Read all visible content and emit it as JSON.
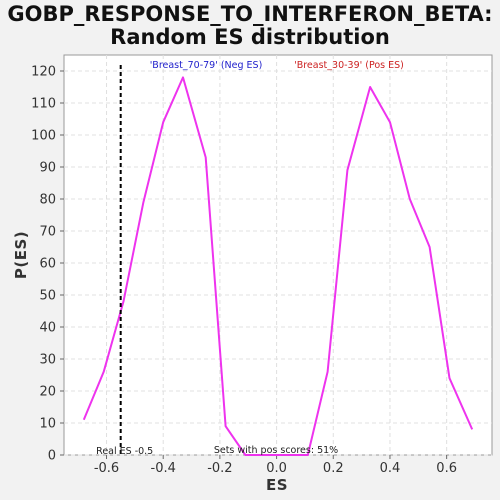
{
  "chart_data": {
    "type": "line",
    "title": "GOBP_RESPONSE_TO_INTERFERON_BETA:",
    "subtitle": "Random ES distribution",
    "xlabel": "ES",
    "ylabel": "P(ES)",
    "xlim": [
      -0.75,
      0.76
    ],
    "ylim": [
      0,
      125
    ],
    "xticks": [
      -0.6,
      -0.4,
      -0.2,
      0.0,
      0.2,
      0.4,
      0.6
    ],
    "xtick_labels": [
      "-0.6",
      "-0.4",
      "-0.2",
      "0.0",
      "0.2",
      "0.4",
      "0.6"
    ],
    "yticks": [
      0,
      10,
      20,
      30,
      40,
      50,
      60,
      70,
      80,
      90,
      100,
      110,
      120
    ],
    "ytick_labels": [
      "0",
      "10",
      "20",
      "30",
      "40",
      "50",
      "60",
      "70",
      "80",
      "90",
      "100",
      "110",
      "120"
    ],
    "grid": true,
    "series": [
      {
        "color": "#ee33ee",
        "x": [
          -0.68,
          -0.61,
          -0.54,
          -0.47,
          -0.4,
          -0.33,
          -0.25,
          -0.18,
          -0.11,
          -0.04,
          0.04,
          0.11,
          0.18,
          0.25,
          0.33,
          0.4,
          0.47,
          0.54,
          0.61,
          0.69
        ],
        "y": [
          11,
          26,
          48,
          79,
          104,
          118,
          93,
          9,
          0,
          0,
          0,
          0,
          26,
          89,
          115,
          104,
          80,
          65,
          24,
          8
        ]
      }
    ],
    "real_es": {
      "value": -0.55,
      "label": "Real ES -0.5",
      "color": "#000000"
    },
    "annotations": {
      "neg_label": "'Breast_70-79' (Neg ES)",
      "neg_color": "#2222cc",
      "pos_label": "'Breast_30-39' (Pos ES)",
      "pos_color": "#cc2222",
      "pos_scores": "Sets with pos scores: 51%"
    }
  }
}
